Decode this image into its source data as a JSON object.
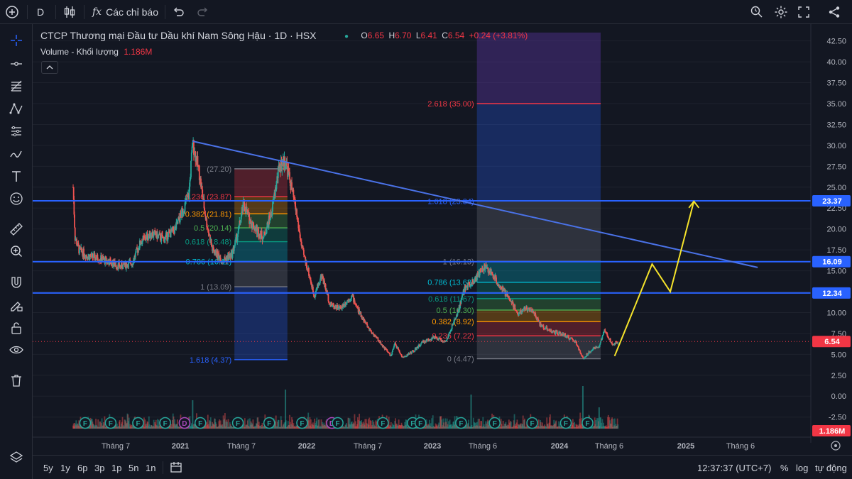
{
  "toolbar": {
    "symbol": "D",
    "indicators_label": "Các chỉ báo"
  },
  "legend": {
    "title": "CTCP Thương mại Đầu tư Dầu khí Nam Sông Hậu · 1D · HSX",
    "o_label": "O",
    "o": "6.65",
    "h_label": "H",
    "h": "6.70",
    "l_label": "L",
    "l": "6.41",
    "c_label": "C",
    "c": "6.54",
    "change": "+0.24 (+3.81%)",
    "volume_label": "Volume - Khối lượng",
    "volume_value": "1.186M"
  },
  "bottom": {
    "ranges": [
      "5y",
      "1y",
      "6p",
      "3p",
      "1p",
      "5n",
      "1n"
    ],
    "clock": "12:37:37 (UTC+7)",
    "percent": "%",
    "log": "log",
    "auto": "tự động"
  },
  "colors": {
    "up": "#26a69a",
    "down": "#ef5350",
    "hline": "#2962ff",
    "trendline": "#4a72e8",
    "projection": "#f5e32b",
    "price_tag": "#f23645"
  },
  "chart_data": {
    "type": "candlestick",
    "ylim": [
      -3.8,
      44
    ],
    "y_ticks": [
      "-2.50",
      "0.00",
      "2.50",
      "5.00",
      "7.50",
      "10.00",
      "12.50",
      "15.00",
      "17.50",
      "20.00",
      "22.50",
      "25.00",
      "27.50",
      "30.00",
      "32.50",
      "35.00",
      "37.50",
      "40.00",
      "42.50"
    ],
    "x_ticks": [
      "Tháng 7",
      "2021",
      "Tháng 7",
      "2022",
      "Tháng 7",
      "2023",
      "Tháng 6",
      "2024",
      "Tháng 6",
      "2025",
      "Tháng 6"
    ],
    "x_domain": [
      "2020-05-01",
      "2025-10-01"
    ],
    "price_series": [
      {
        "date": "2020-08-10",
        "value": 25.0
      },
      {
        "date": "2020-08-15",
        "value": 19.0
      },
      {
        "date": "2020-08-25",
        "value": 17.5
      },
      {
        "date": "2020-09-15",
        "value": 16.8
      },
      {
        "date": "2020-10-15",
        "value": 16.5
      },
      {
        "date": "2020-11-15",
        "value": 16.0
      },
      {
        "date": "2020-12-10",
        "value": 15.5
      },
      {
        "date": "2021-01-10",
        "value": 16.0
      },
      {
        "date": "2021-02-01",
        "value": 18.5
      },
      {
        "date": "2021-03-01",
        "value": 19.5
      },
      {
        "date": "2021-04-01",
        "value": 18.8
      },
      {
        "date": "2021-05-01",
        "value": 20.0
      },
      {
        "date": "2021-06-05",
        "value": 24.0
      },
      {
        "date": "2021-06-15",
        "value": 30.3
      },
      {
        "date": "2021-07-01",
        "value": 27.0
      },
      {
        "date": "2021-07-20",
        "value": 21.0
      },
      {
        "date": "2021-08-05",
        "value": 17.5
      },
      {
        "date": "2021-09-01",
        "value": 16.2
      },
      {
        "date": "2021-09-25",
        "value": 17.0
      },
      {
        "date": "2021-10-10",
        "value": 19.5
      },
      {
        "date": "2021-10-25",
        "value": 23.0
      },
      {
        "date": "2021-11-10",
        "value": 21.0
      },
      {
        "date": "2021-11-25",
        "value": 20.0
      },
      {
        "date": "2021-12-15",
        "value": 19.0
      },
      {
        "date": "2022-01-05",
        "value": 22.0
      },
      {
        "date": "2022-01-25",
        "value": 27.5
      },
      {
        "date": "2022-02-10",
        "value": 28.2
      },
      {
        "date": "2022-02-25",
        "value": 25.0
      },
      {
        "date": "2022-03-10",
        "value": 22.0
      },
      {
        "date": "2022-03-25",
        "value": 17.5
      },
      {
        "date": "2022-04-10",
        "value": 15.0
      },
      {
        "date": "2022-04-25",
        "value": 12.0
      },
      {
        "date": "2022-05-15",
        "value": 14.5
      },
      {
        "date": "2022-06-05",
        "value": 11.0
      },
      {
        "date": "2022-07-01",
        "value": 10.5
      },
      {
        "date": "2022-08-01",
        "value": 12.0
      },
      {
        "date": "2022-08-20",
        "value": 10.0
      },
      {
        "date": "2022-09-15",
        "value": 8.0
      },
      {
        "date": "2022-10-20",
        "value": 6.0
      },
      {
        "date": "2022-11-10",
        "value": 4.8
      },
      {
        "date": "2022-11-20",
        "value": 6.3
      },
      {
        "date": "2022-12-10",
        "value": 4.6
      },
      {
        "date": "2023-01-10",
        "value": 5.5
      },
      {
        "date": "2023-02-01",
        "value": 6.5
      },
      {
        "date": "2023-03-01",
        "value": 7.0
      },
      {
        "date": "2023-04-01",
        "value": 6.5
      },
      {
        "date": "2023-05-01",
        "value": 10.0
      },
      {
        "date": "2023-05-20",
        "value": 13.0
      },
      {
        "date": "2023-06-15",
        "value": 14.0
      },
      {
        "date": "2023-07-10",
        "value": 15.5
      },
      {
        "date": "2023-08-01",
        "value": 14.5
      },
      {
        "date": "2023-08-20",
        "value": 13.0
      },
      {
        "date": "2023-09-15",
        "value": 11.5
      },
      {
        "date": "2023-10-05",
        "value": 9.8
      },
      {
        "date": "2023-10-20",
        "value": 10.5
      },
      {
        "date": "2023-11-10",
        "value": 10.3
      },
      {
        "date": "2023-12-01",
        "value": 8.5
      },
      {
        "date": "2024-01-01",
        "value": 7.7
      },
      {
        "date": "2024-02-01",
        "value": 7.3
      },
      {
        "date": "2024-03-01",
        "value": 6.5
      },
      {
        "date": "2024-03-20",
        "value": 4.5
      },
      {
        "date": "2024-04-10",
        "value": 5.5
      },
      {
        "date": "2024-05-01",
        "value": 6.0
      },
      {
        "date": "2024-05-15",
        "value": 7.8
      },
      {
        "date": "2024-06-05",
        "value": 6.2
      },
      {
        "date": "2024-06-20",
        "value": 6.54
      }
    ],
    "horizontal_levels": [
      23.37,
      16.09,
      12.34
    ],
    "last_price": 6.54,
    "trendline": [
      {
        "date": "2021-06-15",
        "value": 30.5
      },
      {
        "date": "2025-06-15",
        "value": 15.4
      }
    ],
    "projection": [
      {
        "date": "2024-06-10",
        "value": 4.8
      },
      {
        "date": "2024-09-15",
        "value": 15.8
      },
      {
        "date": "2024-11-01",
        "value": 12.5
      },
      {
        "date": "2025-01-01",
        "value": 23.3
      }
    ],
    "projection_arrow": "up",
    "fib_left": {
      "start": "2021-10-01",
      "end": "2022-02-15",
      "levels": [
        {
          "label": "(27.20)",
          "value": 27.2,
          "color": "#787b86"
        },
        {
          "label": "0.236 (23.87)",
          "value": 23.87,
          "color": "#f23645"
        },
        {
          "label": "0.382 (21.81)",
          "value": 21.81,
          "color": "#ff9800"
        },
        {
          "label": "0.5 (20.14)",
          "value": 20.14,
          "color": "#4caf50"
        },
        {
          "label": "0.618 (18.48)",
          "value": 18.48,
          "color": "#089981"
        },
        {
          "label": "0.786 (16.11)",
          "value": 16.11,
          "color": "#00bcd4"
        },
        {
          "label": "1 (13.09)",
          "value": 13.09,
          "color": "#787b86"
        },
        {
          "label": "1.618 (4.37)",
          "value": 4.37,
          "color": "#2962ff"
        }
      ]
    },
    "fib_right": {
      "start": "2023-06-20",
      "end": "2024-05-05",
      "levels": [
        {
          "label": "2.618 (35.00)",
          "value": 35.0,
          "color": "#f23645"
        },
        {
          "label": "1.618 (23.34)",
          "value": 23.34,
          "color": "#2962ff"
        },
        {
          "label": "1 (16.13)",
          "value": 16.13,
          "color": "#787b86"
        },
        {
          "label": "0.786 (13.63)",
          "value": 13.63,
          "color": "#00bcd4"
        },
        {
          "label": "0.618 (11.67)",
          "value": 11.67,
          "color": "#089981"
        },
        {
          "label": "0.5 (10.30)",
          "value": 10.3,
          "color": "#4caf50"
        },
        {
          "label": "0.382 (8.92)",
          "value": 8.92,
          "color": "#ff9800"
        },
        {
          "label": "0.236 (7.22)",
          "value": 7.22,
          "color": "#f23645"
        },
        {
          "label": "0 (4.47)",
          "value": 4.47,
          "color": "#787b86"
        }
      ]
    },
    "event_markers": [
      {
        "date": "2020-09-10",
        "label": "F"
      },
      {
        "date": "2020-11-15",
        "label": "F"
      },
      {
        "date": "2021-01-25",
        "label": "F"
      },
      {
        "date": "2021-04-05",
        "label": "F"
      },
      {
        "date": "2021-05-25",
        "label": "D"
      },
      {
        "date": "2021-07-05",
        "label": "F"
      },
      {
        "date": "2021-10-10",
        "label": "F"
      },
      {
        "date": "2021-12-30",
        "label": "F"
      },
      {
        "date": "2022-03-25",
        "label": "F"
      },
      {
        "date": "2022-06-10",
        "label": "D"
      },
      {
        "date": "2022-06-25",
        "label": "F"
      },
      {
        "date": "2022-10-20",
        "label": "F"
      },
      {
        "date": "2023-01-05",
        "label": "F"
      },
      {
        "date": "2023-01-25",
        "label": "F"
      },
      {
        "date": "2023-05-10",
        "label": "F"
      },
      {
        "date": "2023-08-05",
        "label": "F"
      },
      {
        "date": "2023-11-10",
        "label": "F"
      },
      {
        "date": "2024-02-05",
        "label": "F"
      },
      {
        "date": "2024-04-01",
        "label": "F"
      }
    ]
  }
}
